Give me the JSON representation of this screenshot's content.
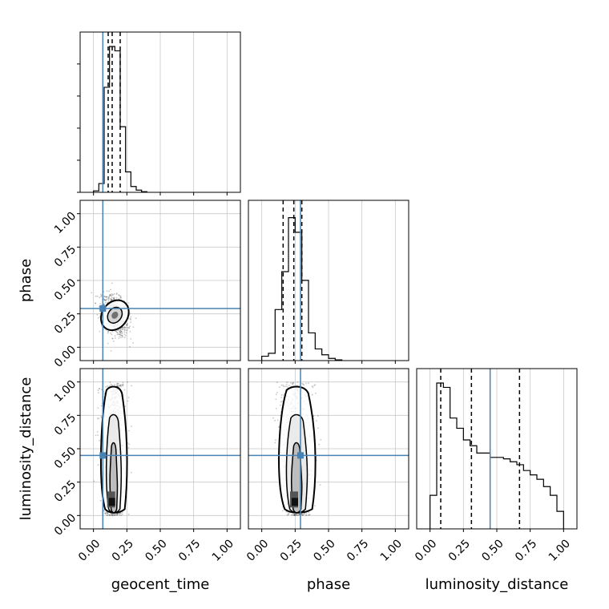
{
  "chart_data": {
    "type": "corner",
    "parameters": [
      "geocent_time",
      "phase",
      "luminosity_distance"
    ],
    "ticks": [
      "0.00",
      "0.25",
      "0.50",
      "0.75",
      "1.00"
    ],
    "axis_range": [
      -0.1,
      1.1
    ],
    "grid": true,
    "truths": {
      "geocent_time": 0.07,
      "phase": 0.29,
      "luminosity_distance": 0.45
    },
    "truth_color": "#4682b4",
    "quantiles": {
      "geocent_time": [
        0.11,
        0.14,
        0.2
      ],
      "phase": [
        0.16,
        0.24,
        0.3
      ],
      "luminosity_distance": [
        0.08,
        0.31,
        0.67
      ]
    },
    "histograms": {
      "geocent_time": {
        "bin_edges": [
          0.0,
          0.04,
          0.08,
          0.12,
          0.16,
          0.2,
          0.24,
          0.28,
          0.32,
          0.36,
          0.4
        ],
        "counts": [
          0.01,
          0.06,
          0.72,
          1.0,
          0.97,
          0.45,
          0.14,
          0.04,
          0.015,
          0.004
        ]
      },
      "phase": {
        "bin_edges": [
          0.0,
          0.05,
          0.1,
          0.15,
          0.2,
          0.25,
          0.3,
          0.35,
          0.4,
          0.45,
          0.5,
          0.55,
          0.6
        ],
        "counts": [
          0.03,
          0.05,
          0.35,
          0.61,
          0.98,
          0.88,
          0.55,
          0.19,
          0.08,
          0.04,
          0.015,
          0.005
        ]
      },
      "luminosity_distance": {
        "bin_edges": [
          0.0,
          0.05,
          0.1,
          0.15,
          0.2,
          0.25,
          0.3,
          0.35,
          0.4,
          0.45,
          0.5,
          0.55,
          0.6,
          0.65,
          0.7,
          0.75,
          0.8,
          0.85,
          0.9,
          0.95,
          1.0
        ],
        "counts": [
          0.23,
          1.0,
          0.97,
          0.76,
          0.69,
          0.61,
          0.57,
          0.52,
          0.52,
          0.49,
          0.49,
          0.48,
          0.46,
          0.44,
          0.4,
          0.37,
          0.34,
          0.29,
          0.23,
          0.12
        ]
      }
    },
    "scatter": {
      "phase_vs_geocent_time": {
        "x_center": 0.16,
        "x_sd": 0.05,
        "y_center": 0.24,
        "y_sd": 0.07,
        "n": 900
      },
      "luminosity_distance_vs_geocent_time": {
        "x_center": 0.15,
        "x_sd": 0.05,
        "y_range": [
          0.0,
          1.0
        ],
        "n": 900
      },
      "luminosity_distance_vs_phase": {
        "x_center": 0.26,
        "x_sd": 0.07,
        "y_range": [
          0.0,
          1.0
        ],
        "n": 900
      }
    }
  }
}
